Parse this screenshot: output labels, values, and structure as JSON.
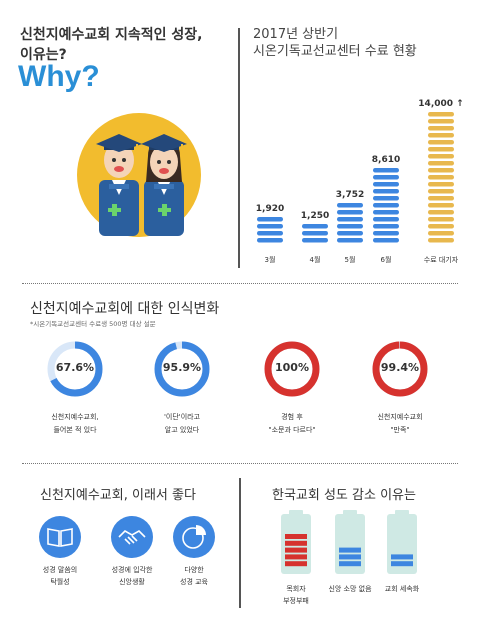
{
  "header": {
    "title_line1": "신천지예수교회 지속적인 성장,",
    "title_line2": "이유는?",
    "why": "Why?"
  },
  "chart_data": {
    "type": "bar",
    "title_line1": "2017년 상반기",
    "title_line2": "시온기독교선교센터 수료 현황",
    "categories": [
      "3월",
      "4월",
      "5월",
      "6월",
      "수료 대기자"
    ],
    "values": [
      1920,
      1250,
      3752,
      8610,
      14000
    ],
    "value_labels": [
      "1,920",
      "1,250",
      "3,752",
      "8,610",
      "14,000"
    ],
    "value_suffix_last": "↑",
    "stack_counts": [
      4,
      3,
      6,
      11,
      19
    ],
    "colors": [
      "#3d86e0",
      "#3d86e0",
      "#3d86e0",
      "#3d86e0",
      "#e8b84e"
    ]
  },
  "perception": {
    "title": "신천지예수교회에 대한 인식변화",
    "note": "*시온기독교선교센터 수료생 500명 대상 설문",
    "items": [
      {
        "value": "67.6%",
        "fraction": 0.676,
        "color": "#3d86e0",
        "line1": "신천지예수교회,",
        "line2": "들어본 적 있다"
      },
      {
        "value": "95.9%",
        "fraction": 0.959,
        "color": "#3d86e0",
        "line1": "'이단'이라고",
        "line2": "알고 있었다"
      },
      {
        "value": "100%",
        "fraction": 1.0,
        "color": "#d6322e",
        "line1": "경험 후",
        "line2": "\"소문과 다르다\""
      },
      {
        "value": "99.4%",
        "fraction": 0.994,
        "color": "#d6322e",
        "line1": "신천지예수교회",
        "line2": "\"만족\""
      }
    ]
  },
  "good": {
    "title": "신천지예수교회, 이래서 좋다",
    "items": [
      {
        "icon": "book-icon",
        "line1": "성경 말씀의",
        "line2": "탁월성"
      },
      {
        "icon": "handshake-icon",
        "line1": "성경에 입각한",
        "line2": "신앙생활"
      },
      {
        "icon": "pie-chart-icon",
        "line1": "다양한",
        "line2": "성경 교육"
      }
    ]
  },
  "decline": {
    "title": "한국교회 성도 감소 이유는",
    "items": [
      {
        "line1": "목회자",
        "line2": "부정부패",
        "level": 0.6,
        "color": "#d6322e"
      },
      {
        "line1": "신앙 소망 없음",
        "line2": "",
        "level": 0.4,
        "color": "#3d86e0"
      },
      {
        "line1": "교회 세속화",
        "line2": "",
        "level": 0.2,
        "color": "#3d86e0"
      }
    ]
  }
}
